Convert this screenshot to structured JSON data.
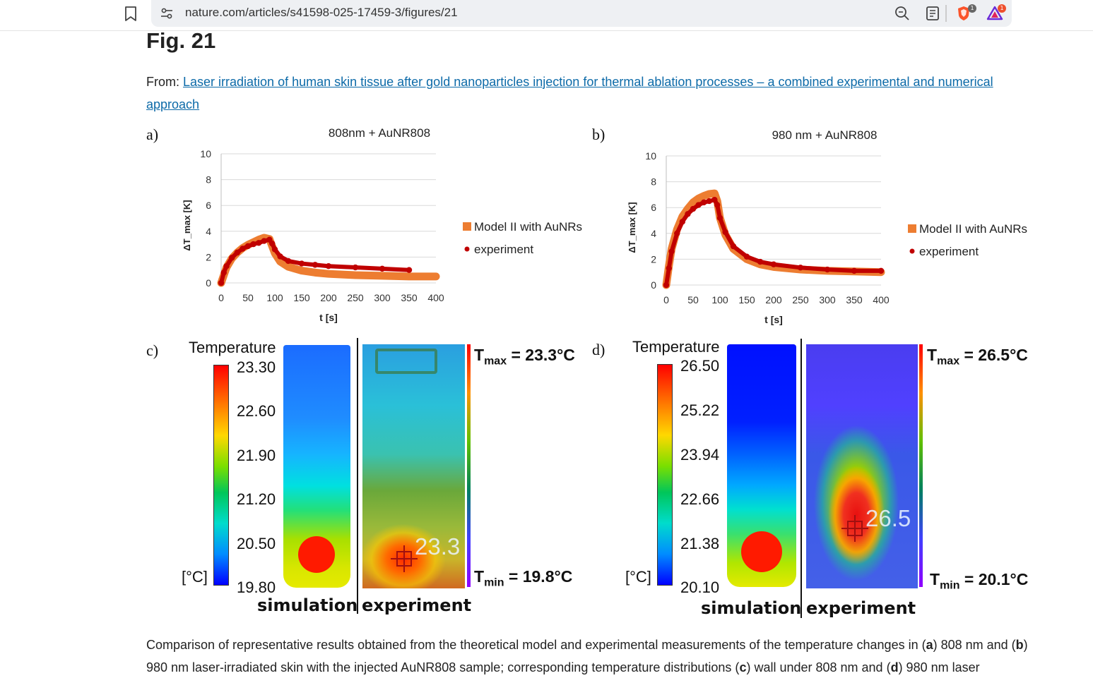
{
  "browser": {
    "url": "nature.com/articles/s41598-025-17459-3/figures/21",
    "brave_badge": "1",
    "rewards_badge": "1"
  },
  "page": {
    "title": "Fig. 21",
    "from_prefix": "From: ",
    "from_link": "Laser irradiation of human skin tissue after gold nanoparticles injection for thermal ablation processes – a combined experimental and numerical approach",
    "caption_parts": [
      "Comparison of representative results obtained from the theoretical model and experimental measurements of the temperature changes in (",
      "a",
      ") 808 nm and (",
      "b",
      ") 980 nm laser-irradiated skin with the injected AuNR808 sample; corresponding temperature distributions (",
      "c",
      ") wall under 808 nm and (",
      "d",
      ") 980 nm laser"
    ]
  },
  "chart_data": [
    {
      "panel": "a)",
      "type": "line",
      "title": "808nm + AuNR808",
      "xlabel": "t [s]",
      "ylabel": "ΔT_max [K]",
      "xlim": [
        0,
        400
      ],
      "ylim": [
        0,
        10
      ],
      "xticks": [
        0,
        50,
        100,
        150,
        200,
        250,
        300,
        350,
        400
      ],
      "yticks": [
        0,
        2,
        4,
        6,
        8,
        10
      ],
      "legend_position": "right",
      "series": [
        {
          "name": "Model II with AuNRs",
          "color": "#ed7d31",
          "x": [
            0,
            10,
            20,
            30,
            40,
            50,
            60,
            70,
            80,
            90,
            100,
            110,
            125,
            150,
            175,
            200,
            250,
            300,
            350,
            400
          ],
          "y": [
            0,
            1.2,
            1.9,
            2.35,
            2.7,
            2.95,
            3.15,
            3.35,
            3.5,
            3.4,
            2.3,
            1.65,
            1.25,
            0.95,
            0.8,
            0.7,
            0.6,
            0.55,
            0.5,
            0.5
          ]
        },
        {
          "name": "experiment",
          "color": "#c00000",
          "x": [
            0,
            5,
            10,
            20,
            30,
            40,
            50,
            60,
            70,
            80,
            90,
            95,
            100,
            110,
            125,
            150,
            175,
            200,
            250,
            300,
            350
          ],
          "y": [
            0,
            0.8,
            1.3,
            1.95,
            2.35,
            2.65,
            2.85,
            3.0,
            3.1,
            3.25,
            3.35,
            3.05,
            2.6,
            2.05,
            1.7,
            1.5,
            1.4,
            1.3,
            1.2,
            1.1,
            1.0
          ]
        }
      ]
    },
    {
      "panel": "b)",
      "type": "line",
      "title": "980 nm + AuNR808",
      "xlabel": "t [s]",
      "ylabel": "ΔT_max [K]",
      "xlim": [
        0,
        400
      ],
      "ylim": [
        0,
        10
      ],
      "xticks": [
        0,
        50,
        100,
        150,
        200,
        250,
        300,
        350,
        400
      ],
      "yticks": [
        0,
        2,
        4,
        6,
        8,
        10
      ],
      "legend_position": "right",
      "series": [
        {
          "name": "Model II with AuNRs",
          "color": "#ed7d31",
          "x": [
            0,
            5,
            10,
            20,
            30,
            40,
            50,
            60,
            70,
            80,
            90,
            95,
            100,
            110,
            125,
            150,
            175,
            200,
            250,
            300,
            350,
            400
          ],
          "y": [
            0,
            1.5,
            2.8,
            4.3,
            5.3,
            5.9,
            6.4,
            6.7,
            6.9,
            7.05,
            7.1,
            6.5,
            5.2,
            3.9,
            2.8,
            2.0,
            1.6,
            1.4,
            1.2,
            1.1,
            1.05,
            1.0
          ]
        },
        {
          "name": "experiment",
          "color": "#c00000",
          "x": [
            0,
            5,
            10,
            20,
            30,
            40,
            50,
            60,
            70,
            80,
            90,
            95,
            100,
            110,
            125,
            150,
            175,
            200,
            250,
            300,
            350,
            400
          ],
          "y": [
            0,
            1.3,
            2.6,
            4.0,
            4.9,
            5.5,
            5.9,
            6.2,
            6.4,
            6.5,
            6.6,
            6.2,
            5.2,
            4.1,
            3.0,
            2.2,
            1.8,
            1.6,
            1.35,
            1.2,
            1.1,
            1.1
          ]
        }
      ]
    }
  ],
  "thermal": {
    "c": {
      "letter": "c)",
      "heading": "Temperature",
      "unit": "[°C]",
      "ticks": [
        "23.30",
        "22.60",
        "21.90",
        "21.20",
        "20.50",
        "19.80"
      ],
      "tmax_label": "T",
      "tmax_sub": "max",
      "tmax_value": " = 23.3°C",
      "tmin_label": "T",
      "tmin_sub": "min",
      "tmin_value": " = 19.8°C",
      "spot_value": "23.3",
      "sim_label": "simulation",
      "exp_label": "experiment"
    },
    "d": {
      "letter": "d)",
      "heading": "Temperature",
      "unit": "[°C]",
      "ticks": [
        "26.50",
        "25.22",
        "23.94",
        "22.66",
        "21.38",
        "20.10"
      ],
      "tmax_label": "T",
      "tmax_sub": "max",
      "tmax_value": " = 26.5°C",
      "tmin_label": "T",
      "tmin_sub": "min",
      "tmin_value": " = 20.1°C",
      "spot_value": "26.5",
      "sim_label": "simulation",
      "exp_label": "experiment"
    }
  }
}
